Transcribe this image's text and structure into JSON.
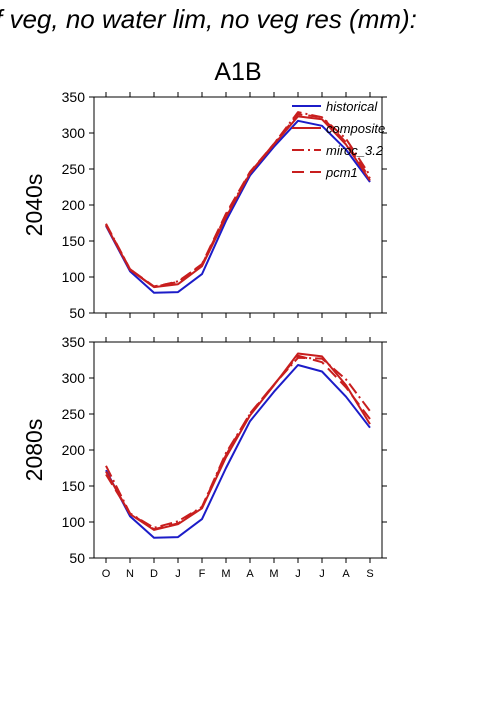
{
  "header": {
    "title": "f veg, no water lim, no veg res (mm):",
    "scenario": "A1B"
  },
  "colors": {
    "historical": "#1c1cc8",
    "scenarios": "#c81e1e",
    "axis": "#000000"
  },
  "chart_data": [
    {
      "type": "line",
      "ylabel": "2040s",
      "ylim": [
        50,
        350
      ],
      "yticks": [
        "50",
        "100",
        "150",
        "200",
        "250",
        "300",
        "350"
      ],
      "categories": [
        "O",
        "N",
        "D",
        "J",
        "F",
        "M",
        "A",
        "M",
        "J",
        "J",
        "A",
        "S"
      ],
      "show_x_tick_labels": false,
      "legend": {
        "placement": "top-right",
        "entries": [
          "historical",
          "composite",
          "miroc_3.2",
          "pcm1"
        ]
      },
      "series": [
        {
          "name": "historical",
          "style": "solid",
          "values": [
            171,
            108,
            78,
            79,
            104,
            178,
            241,
            281,
            317,
            310,
            277,
            232
          ]
        },
        {
          "name": "composite",
          "style": "solid",
          "values": [
            172,
            110,
            86,
            90,
            115,
            183,
            244,
            284,
            323,
            319,
            284,
            234
          ]
        },
        {
          "name": "miroc_3.2",
          "style": "dashdot",
          "values": [
            174,
            111,
            86,
            94,
            117,
            186,
            245,
            285,
            329,
            322,
            292,
            241
          ]
        },
        {
          "name": "pcm1",
          "style": "dash",
          "values": [
            173,
            111,
            87,
            93,
            118,
            188,
            246,
            285,
            326,
            322,
            287,
            237
          ]
        }
      ]
    },
    {
      "type": "line",
      "ylabel": "2080s",
      "ylim": [
        50,
        350
      ],
      "yticks": [
        "50",
        "100",
        "150",
        "200",
        "250",
        "300",
        "350"
      ],
      "categories": [
        "O",
        "N",
        "D",
        "J",
        "F",
        "M",
        "A",
        "M",
        "J",
        "J",
        "A",
        "S"
      ],
      "show_x_tick_labels": true,
      "series": [
        {
          "name": "historical",
          "style": "solid",
          "values": [
            172,
            108,
            78,
            79,
            104,
            175,
            240,
            281,
            318,
            309,
            274,
            231
          ]
        },
        {
          "name": "composite",
          "style": "solid",
          "values": [
            170,
            111,
            89,
            97,
            119,
            190,
            248,
            290,
            334,
            330,
            290,
            236
          ]
        },
        {
          "name": "miroc_3.2",
          "style": "dashdot",
          "values": [
            178,
            112,
            92,
            101,
            121,
            196,
            250,
            291,
            328,
            327,
            298,
            254
          ]
        },
        {
          "name": "pcm1",
          "style": "dash",
          "values": [
            166,
            112,
            90,
            98,
            121,
            193,
            251,
            291,
            331,
            322,
            287,
            243
          ]
        }
      ]
    }
  ]
}
